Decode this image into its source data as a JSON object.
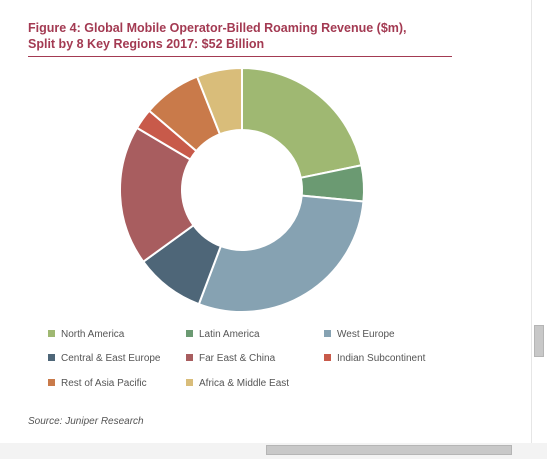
{
  "figure": {
    "title_line1": "Figure 4: Global Mobile Operator-Billed Roaming Revenue ($m),",
    "title_line2": "Split by 8 Key Regions 2017: $52 Billion",
    "source": "Source: Juniper Research"
  },
  "chart_data": {
    "type": "pie",
    "style": "donut",
    "title": "Figure 4: Global Mobile Operator-Billed Roaming Revenue ($m), Split by 8 Key Regions 2017: $52 Billion",
    "legend_position": "bottom",
    "slices": [
      {
        "name": "North America",
        "share": 0.2175,
        "color": "#9fb872"
      },
      {
        "name": "Latin America",
        "share": 0.0475,
        "color": "#6b9a72"
      },
      {
        "name": "West Europe",
        "share": 0.2925,
        "color": "#86a2b2"
      },
      {
        "name": "Central & East Europe",
        "share": 0.0925,
        "color": "#4e6678"
      },
      {
        "name": "Far East & China",
        "share": 0.185,
        "color": "#a85d5f"
      },
      {
        "name": "Indian Subcontinent",
        "share": 0.0275,
        "color": "#c85a4a"
      },
      {
        "name": "Rest of Asia Pacific",
        "share": 0.0775,
        "color": "#c97a4a"
      },
      {
        "name": "Africa & Middle East",
        "share": 0.06,
        "color": "#d9bd7a"
      }
    ]
  }
}
